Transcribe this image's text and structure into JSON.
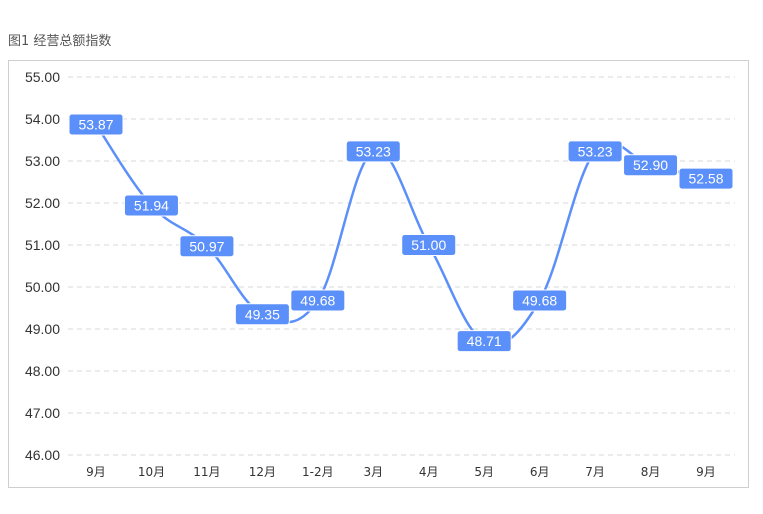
{
  "figure": {
    "caption": "图1 经营总额指数"
  },
  "chart_data": {
    "type": "line",
    "categories": [
      "9月",
      "10月",
      "11月",
      "12月",
      "1-2月",
      "3月",
      "4月",
      "5月",
      "6月",
      "7月",
      "8月",
      "9月"
    ],
    "values": [
      53.87,
      51.94,
      50.97,
      49.35,
      49.68,
      53.23,
      51.0,
      48.71,
      49.68,
      53.23,
      52.9,
      52.58
    ],
    "value_labels": [
      "53.87",
      "51.94",
      "50.97",
      "49.35",
      "49.68",
      "53.23",
      "51.00",
      "48.71",
      "49.68",
      "53.23",
      "52.90",
      "52.58"
    ],
    "ylim": [
      46,
      55
    ],
    "yticks": [
      "46.00",
      "47.00",
      "48.00",
      "49.00",
      "50.00",
      "51.00",
      "52.00",
      "53.00",
      "54.00",
      "55.00"
    ],
    "grid": true,
    "smooth": true,
    "line_color": "#5B8FF9",
    "label_bg_color": "#5B8FF9",
    "grid_color": "#d9d9d9"
  }
}
